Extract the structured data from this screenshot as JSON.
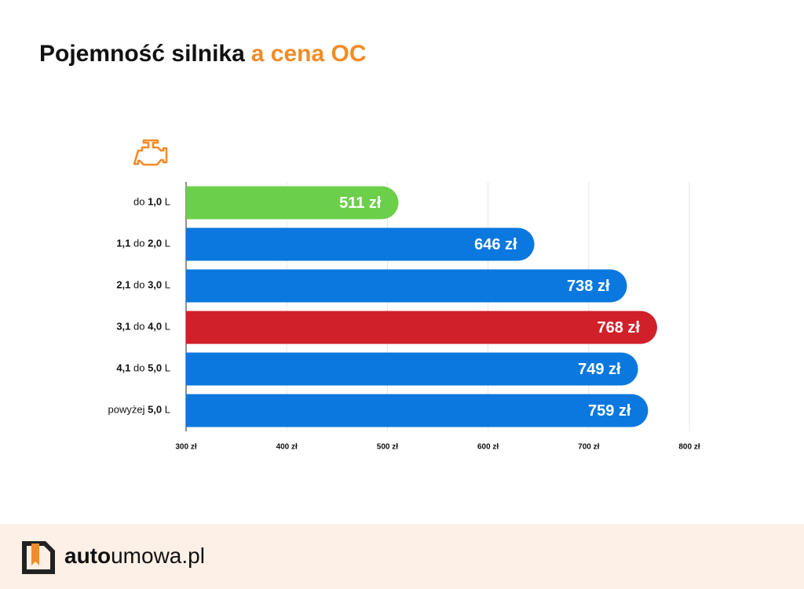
{
  "chart_data": {
    "type": "hbar",
    "title": "Pojemność silnika",
    "title_highlight": "a cena OC",
    "categories": [
      "do 1,0 L",
      "1,1 do 2,0 L",
      "2,1 do 3,0 L",
      "3,1 do 4,0 L",
      "4,1 do 5,0 L",
      "powyżej 5,0 L"
    ],
    "values": [
      511,
      646,
      738,
      768,
      749,
      759
    ],
    "value_labels": [
      "511 zł",
      "646 zł",
      "738 zł",
      "768 zł",
      "749 zł",
      "759 zł"
    ],
    "colors": [
      "#6ccf4a",
      "#0a78de",
      "#0a78de",
      "#d0202a",
      "#0a78de",
      "#0a78de"
    ],
    "xlim": [
      300,
      800
    ],
    "xticks": [
      {
        "value": 300,
        "label": "300 zł"
      },
      {
        "value": 400,
        "label": "400 zł"
      },
      {
        "value": 500,
        "label": "500 zł"
      },
      {
        "value": 600,
        "label": "600 zł"
      },
      {
        "value": 700,
        "label": "700 zł"
      },
      {
        "value": 800,
        "label": "800 zł"
      }
    ],
    "grid": true
  },
  "footer": {
    "brand_bold": "auto",
    "brand_rest": "umowa.pl"
  }
}
